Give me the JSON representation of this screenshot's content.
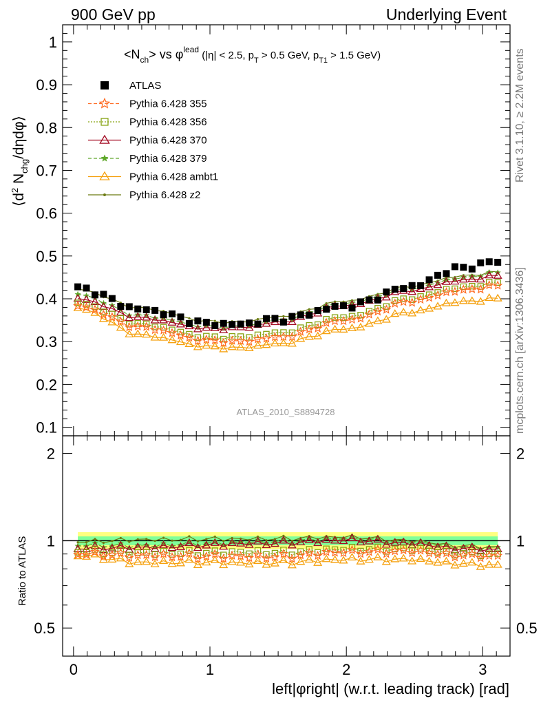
{
  "header": {
    "left": "900 GeV pp",
    "right": "Underlying Event"
  },
  "side_labels": {
    "top": "Rivet 3.1.10, ≥ 2.2M events",
    "bottom": "mcplots.cern.ch [arXiv:1306.3436]"
  },
  "watermark": "ATLAS_2010_S8894728",
  "colors": {
    "atlas": "#000000",
    "p355": "#ff6a21",
    "p356": "#86a312",
    "p370": "#a30a22",
    "p379": "#5fa82a",
    "ambt1": "#f5a10f",
    "z2": "#6b7a12",
    "band_outer": "#ffff80",
    "band_inner": "#80ff9a"
  },
  "chart_data": {
    "type": "scatter",
    "title": "<N_ch> vs φ^lead (|η| < 2.5, p_T > 0.5 GeV, p_T1 > 1.5 GeV)",
    "xlabel": "left|φright| (w.r.t. leading track) [rad]",
    "ylabel": "⟨d² N_chg/dηdφ⟩",
    "ratio_ylabel": "Ratio to ATLAS",
    "xlim": [
      -0.08,
      3.2
    ],
    "ylim": [
      0.08,
      1.04
    ],
    "ratio_ylim": [
      0.4,
      2.3
    ],
    "x_ticks": [
      0,
      1,
      2,
      3
    ],
    "y_ticks": [
      0.1,
      0.2,
      0.3,
      0.4,
      0.5,
      0.6,
      0.7,
      0.8,
      0.9,
      1
    ],
    "ratio_ticks": [
      0.5,
      1,
      2
    ],
    "legend_position": "top-left",
    "series": [
      {
        "name": "ATLAS",
        "key": "atlas",
        "marker": "square"
      },
      {
        "name": "Pythia 6.428 355",
        "key": "p355",
        "marker": "star",
        "dash": "5,3"
      },
      {
        "name": "Pythia 6.428 356",
        "key": "p356",
        "marker": "open-square",
        "dash": "2,2"
      },
      {
        "name": "Pythia 6.428 370",
        "key": "p370",
        "marker": "open-triangle",
        "dash": ""
      },
      {
        "name": "Pythia 6.428 379",
        "key": "p379",
        "marker": "small-star",
        "dash": "5,3"
      },
      {
        "name": "Pythia 6.428 ambt1",
        "key": "ambt1",
        "marker": "open-triangle",
        "dash": ""
      },
      {
        "name": "Pythia 6.428 z2",
        "key": "z2",
        "marker": "dot",
        "dash": ""
      }
    ],
    "knots": {
      "x": [
        0.03,
        0.5,
        1.0,
        1.2,
        1.5,
        2.0,
        2.5,
        2.8,
        3.11
      ],
      "atlas": [
        0.425,
        0.375,
        0.342,
        0.34,
        0.352,
        0.383,
        0.43,
        0.47,
        0.487
      ],
      "p355": [
        0.383,
        0.333,
        0.302,
        0.3,
        0.31,
        0.35,
        0.395,
        0.418,
        0.43
      ],
      "p356": [
        0.39,
        0.34,
        0.31,
        0.31,
        0.32,
        0.358,
        0.402,
        0.425,
        0.437
      ],
      "p370": [
        0.4,
        0.355,
        0.33,
        0.332,
        0.345,
        0.385,
        0.42,
        0.442,
        0.453
      ],
      "p379": [
        0.41,
        0.36,
        0.335,
        0.335,
        0.35,
        0.39,
        0.425,
        0.447,
        0.46
      ],
      "ambt1": [
        0.378,
        0.315,
        0.288,
        0.285,
        0.295,
        0.33,
        0.37,
        0.392,
        0.4
      ],
      "z2": [
        0.422,
        0.378,
        0.347,
        0.345,
        0.358,
        0.395,
        0.43,
        0.452,
        0.462
      ]
    }
  }
}
